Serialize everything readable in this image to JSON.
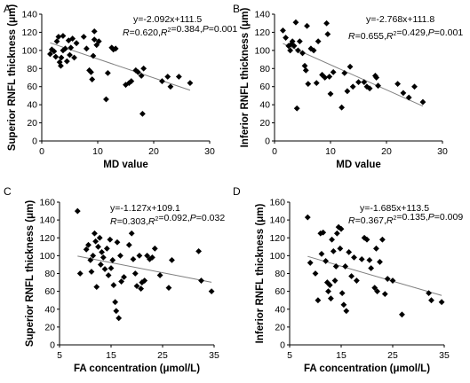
{
  "chart_data": [
    {
      "panel": "A",
      "type": "scatter",
      "xlabel": "MD value",
      "ylabel": "Superior RNFL thickness (μm)",
      "xlim": [
        0,
        30
      ],
      "ylim": [
        0,
        140
      ],
      "xticks": [
        "0",
        "10",
        "20",
        "30"
      ],
      "yticks": [
        "0",
        "20",
        "40",
        "60",
        "80",
        "100",
        "120",
        "140"
      ],
      "equation": "y=-2.092x+111.5",
      "stats": {
        "r_label": "R",
        "r": "0.620",
        "r2_label": "R",
        "r2": "0.384",
        "p_label": "P",
        "p": "0.001"
      },
      "trendline": {
        "slope": -2.092,
        "intercept": 111.5,
        "x_range": [
          1.5,
          26.5
        ]
      },
      "points": [
        [
          1.5,
          96
        ],
        [
          1.8,
          101
        ],
        [
          2.2,
          99
        ],
        [
          2.5,
          93
        ],
        [
          2.7,
          110
        ],
        [
          3.0,
          115
        ],
        [
          3.2,
          87
        ],
        [
          3.4,
          83
        ],
        [
          3.5,
          92
        ],
        [
          3.8,
          100
        ],
        [
          3.8,
          116
        ],
        [
          4.2,
          102
        ],
        [
          4.5,
          88
        ],
        [
          4.8,
          111
        ],
        [
          5.0,
          95
        ],
        [
          5.2,
          103
        ],
        [
          5.5,
          113
        ],
        [
          5.8,
          92
        ],
        [
          6.2,
          108
        ],
        [
          7.5,
          115
        ],
        [
          8.0,
          102
        ],
        [
          8.5,
          78
        ],
        [
          8.8,
          76
        ],
        [
          9.0,
          68
        ],
        [
          9.2,
          94
        ],
        [
          9.4,
          112
        ],
        [
          9.4,
          121
        ],
        [
          9.8,
          106
        ],
        [
          10.2,
          110
        ],
        [
          11.5,
          46
        ],
        [
          11.8,
          75
        ],
        [
          12.5,
          103
        ],
        [
          12.8,
          101
        ],
        [
          13.2,
          102
        ],
        [
          15.0,
          62
        ],
        [
          15.6,
          64
        ],
        [
          16.0,
          66
        ],
        [
          16.8,
          78
        ],
        [
          17.2,
          76
        ],
        [
          17.8,
          72
        ],
        [
          18.0,
          30
        ],
        [
          18.2,
          80
        ],
        [
          21.5,
          66
        ],
        [
          22.5,
          71
        ],
        [
          23.0,
          60
        ],
        [
          24.5,
          71
        ],
        [
          26.5,
          64
        ]
      ]
    },
    {
      "panel": "B",
      "type": "scatter",
      "xlabel": "MD value",
      "ylabel": "Inferior RNFL thickness (μm)",
      "xlim": [
        0,
        30
      ],
      "ylim": [
        0,
        140
      ],
      "xticks": [
        "0",
        "10",
        "20",
        "30"
      ],
      "yticks": [
        "0",
        "20",
        "40",
        "60",
        "80",
        "100",
        "120",
        "140"
      ],
      "equation": "y=-2.768x+111.8",
      "stats": {
        "r_label": "R",
        "r": "0.655",
        "r2_label": "R",
        "r2": "0.429",
        "p_label": "P",
        "p": "0.001"
      },
      "trendline": {
        "slope": -2.768,
        "intercept": 111.8,
        "x_range": [
          1.5,
          26.5
        ]
      },
      "points": [
        [
          1.5,
          122
        ],
        [
          2.0,
          114
        ],
        [
          2.5,
          105
        ],
        [
          2.8,
          100
        ],
        [
          3.0,
          107
        ],
        [
          3.2,
          110
        ],
        [
          3.5,
          105
        ],
        [
          3.8,
          131
        ],
        [
          4.0,
          36
        ],
        [
          4.2,
          100
        ],
        [
          4.5,
          110
        ],
        [
          5.0,
          97
        ],
        [
          5.4,
          83
        ],
        [
          5.6,
          78
        ],
        [
          5.8,
          127
        ],
        [
          6.0,
          63
        ],
        [
          6.5,
          102
        ],
        [
          7.0,
          100
        ],
        [
          7.5,
          64
        ],
        [
          7.8,
          110
        ],
        [
          8.5,
          73
        ],
        [
          9.0,
          70
        ],
        [
          9.3,
          130
        ],
        [
          9.5,
          118
        ],
        [
          9.8,
          71
        ],
        [
          10.0,
          52
        ],
        [
          10.5,
          76
        ],
        [
          12.0,
          37
        ],
        [
          12.5,
          75
        ],
        [
          13.0,
          55
        ],
        [
          13.5,
          82
        ],
        [
          14.0,
          60
        ],
        [
          15.0,
          65
        ],
        [
          16.0,
          65
        ],
        [
          16.5,
          60
        ],
        [
          17.0,
          58
        ],
        [
          18.0,
          72
        ],
        [
          18.2,
          70
        ],
        [
          18.5,
          61
        ],
        [
          22.0,
          63
        ],
        [
          23.0,
          53
        ],
        [
          24.0,
          48
        ],
        [
          25.0,
          60
        ],
        [
          26.5,
          43
        ]
      ]
    },
    {
      "panel": "C",
      "type": "scatter",
      "xlabel": "FA concentration (μmol/L)",
      "ylabel": "Superior RNFL thickness (μm)",
      "xlim": [
        5,
        35
      ],
      "ylim": [
        0,
        160
      ],
      "xticks": [
        "5",
        "15",
        "25",
        "35"
      ],
      "yticks": [
        "0",
        "20",
        "40",
        "60",
        "80",
        "100",
        "120",
        "140",
        "160"
      ],
      "equation": "y=-1.127x+109.1",
      "stats": {
        "r_label": "R",
        "r": "0.303",
        "r2_label": "R",
        "r2": "0.092",
        "p_label": "P",
        "p": "0.032"
      },
      "trendline": {
        "slope": -1.127,
        "intercept": 109.1,
        "x_range": [
          8.5,
          34.5
        ]
      },
      "points": [
        [
          8.5,
          150
        ],
        [
          9.0,
          80
        ],
        [
          10.2,
          107
        ],
        [
          10.6,
          112
        ],
        [
          11.0,
          95
        ],
        [
          11.2,
          82
        ],
        [
          11.5,
          100
        ],
        [
          11.8,
          125
        ],
        [
          12.0,
          116
        ],
        [
          12.2,
          65
        ],
        [
          12.5,
          110
        ],
        [
          12.8,
          120
        ],
        [
          13.0,
          90
        ],
        [
          13.2,
          104
        ],
        [
          13.5,
          98
        ],
        [
          13.8,
          85
        ],
        [
          14.2,
          108
        ],
        [
          14.5,
          78
        ],
        [
          14.8,
          118
        ],
        [
          15.0,
          86
        ],
        [
          15.3,
          95
        ],
        [
          15.5,
          67
        ],
        [
          15.8,
          48
        ],
        [
          16.0,
          38
        ],
        [
          16.2,
          115
        ],
        [
          16.5,
          30
        ],
        [
          16.8,
          100
        ],
        [
          17.0,
          71
        ],
        [
          17.5,
          76
        ],
        [
          18.5,
          112
        ],
        [
          19.0,
          125
        ],
        [
          19.3,
          96
        ],
        [
          19.7,
          80
        ],
        [
          20.0,
          66
        ],
        [
          20.5,
          100
        ],
        [
          20.8,
          63
        ],
        [
          21.0,
          70
        ],
        [
          21.5,
          72
        ],
        [
          22.0,
          100
        ],
        [
          22.5,
          96
        ],
        [
          23.0,
          98
        ],
        [
          23.5,
          108
        ],
        [
          24.5,
          78
        ],
        [
          26.2,
          64
        ],
        [
          26.8,
          95
        ],
        [
          32.0,
          105
        ],
        [
          32.5,
          72
        ],
        [
          34.5,
          60
        ]
      ]
    },
    {
      "panel": "D",
      "type": "scatter",
      "xlabel": "FA concentration (μmol/L)",
      "ylabel": "Inferior RNFL thickness (μm)",
      "xlim": [
        5,
        35
      ],
      "ylim": [
        0,
        160
      ],
      "xticks": [
        "5",
        "15",
        "25",
        "35"
      ],
      "yticks": [
        "0",
        "20",
        "40",
        "60",
        "80",
        "100",
        "120",
        "140",
        "160"
      ],
      "equation": "y=-1.685x+113.5",
      "stats": {
        "r_label": "R",
        "r": "0.367",
        "r2_label": "R",
        "r2": "0.135",
        "p_label": "P",
        "p": "0.009"
      },
      "trendline": {
        "slope": -1.685,
        "intercept": 113.5,
        "x_range": [
          8.5,
          34.5
        ]
      },
      "points": [
        [
          8.5,
          143
        ],
        [
          9.0,
          92
        ],
        [
          10.0,
          80
        ],
        [
          10.5,
          50
        ],
        [
          11.0,
          125
        ],
        [
          11.2,
          102
        ],
        [
          11.5,
          126
        ],
        [
          12.0,
          94
        ],
        [
          12.3,
          70
        ],
        [
          12.5,
          60
        ],
        [
          12.8,
          67
        ],
        [
          13.0,
          52
        ],
        [
          13.2,
          118
        ],
        [
          13.5,
          105
        ],
        [
          13.8,
          72
        ],
        [
          14.0,
          88
        ],
        [
          14.2,
          125
        ],
        [
          14.5,
          132
        ],
        [
          14.8,
          108
        ],
        [
          15.0,
          130
        ],
        [
          15.2,
          58
        ],
        [
          15.5,
          45
        ],
        [
          15.8,
          88
        ],
        [
          16.0,
          38
        ],
        [
          16.5,
          104
        ],
        [
          17.0,
          77
        ],
        [
          17.5,
          98
        ],
        [
          18.0,
          72
        ],
        [
          19.0,
          96
        ],
        [
          19.5,
          120
        ],
        [
          20.0,
          118
        ],
        [
          20.5,
          95
        ],
        [
          20.8,
          86
        ],
        [
          21.5,
          64
        ],
        [
          21.8,
          108
        ],
        [
          22.0,
          60
        ],
        [
          22.5,
          93
        ],
        [
          23.0,
          118
        ],
        [
          23.5,
          57
        ],
        [
          24.0,
          74
        ],
        [
          25.0,
          72
        ],
        [
          26.8,
          34
        ],
        [
          32.0,
          58
        ],
        [
          32.5,
          50
        ],
        [
          34.5,
          48
        ]
      ]
    }
  ]
}
